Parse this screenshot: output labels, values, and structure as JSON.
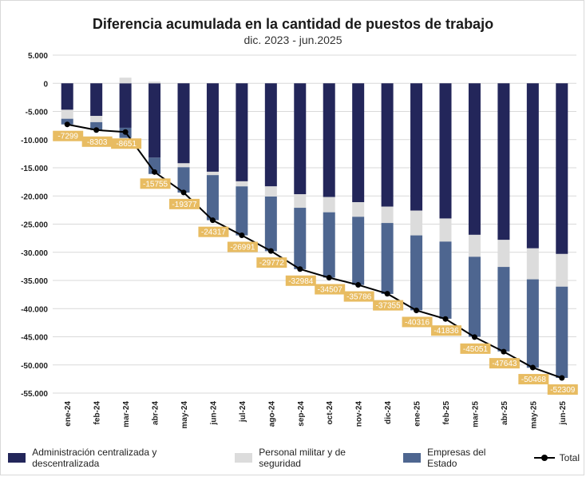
{
  "title": "Diferencia acumulada en la cantidad de puestos de trabajo",
  "subtitle": "dic. 2023 - jun.2025",
  "colors": {
    "admin": "#23265a",
    "militar": "#dcdcdc",
    "empresas": "#4e6690",
    "total": "#000000",
    "label_bg": "#e8bc62"
  },
  "chart_data": {
    "type": "bar",
    "stacked": true,
    "categories": [
      "ene-24",
      "feb-24",
      "mar-24",
      "abr-24",
      "may-24",
      "jun-24",
      "jul-24",
      "ago-24",
      "sep-24",
      "oct-24",
      "nov-24",
      "dic-24",
      "ene-25",
      "feb-25",
      "mar-25",
      "abr-25",
      "may-25",
      "jun-25"
    ],
    "series": [
      {
        "name": "Administración centralizada y descentralizada",
        "color": "#23265a",
        "values": [
          -4700,
          -5800,
          -7900,
          -13200,
          -14200,
          -15700,
          -17400,
          -18300,
          -19700,
          -20200,
          -21100,
          -21900,
          -22600,
          -24000,
          -26900,
          -27800,
          -29300,
          -30300
        ]
      },
      {
        "name": "Personal militar y de seguridad",
        "color": "#dcdcdc",
        "values": [
          -1600,
          -1100,
          1000,
          300,
          -700,
          -600,
          -900,
          -1800,
          -2400,
          -2700,
          -2600,
          -2900,
          -4400,
          -4100,
          -3900,
          -4800,
          -5500,
          -5800
        ]
      },
      {
        "name": "Empresas del Estado",
        "color": "#4e6690",
        "values": [
          -1000,
          -1400,
          -1800,
          -2900,
          -4500,
          -8000,
          -8700,
          -9700,
          -10900,
          -11600,
          -12100,
          -12600,
          -13300,
          -13700,
          -14200,
          -15000,
          -15700,
          -16200
        ]
      },
      {
        "name": "Total",
        "type": "line",
        "color": "#000000",
        "values": [
          -7299,
          -8303,
          -8651,
          -15755,
          -19377,
          -24317,
          -26991,
          -29772,
          -32984,
          -34507,
          -35786,
          -37355,
          -40316,
          -41836,
          -45051,
          -47643,
          -50468,
          -52309
        ]
      }
    ],
    "data_labels": [
      "-7299",
      "-8303",
      "-8651",
      "-15755",
      "-19377",
      "-24317",
      "-26991",
      "-29772",
      "-32984",
      "-34507",
      "-35786",
      "-37355",
      "-40316",
      "-41836",
      "-45051",
      "-47643",
      "-50468",
      "-52309"
    ],
    "y_ticks": [
      5000,
      0,
      -5000,
      -10000,
      -15000,
      -20000,
      -25000,
      -30000,
      -35000,
      -40000,
      -45000,
      -50000,
      -55000
    ],
    "y_tick_labels": [
      "5.000",
      "0",
      "-5.000",
      "-10.000",
      "-15.000",
      "-20.000",
      "-25.000",
      "-30.000",
      "-35.000",
      "-40.000",
      "-45.000",
      "-50.000",
      "-55.000"
    ],
    "ylim": [
      -55000,
      5000
    ],
    "grid": true,
    "legend_position": "bottom"
  },
  "legend": {
    "admin": "Administración centralizada y descentralizada",
    "militar": "Personal militar y de seguridad",
    "empresas": "Empresas del Estado",
    "total": "Total"
  }
}
